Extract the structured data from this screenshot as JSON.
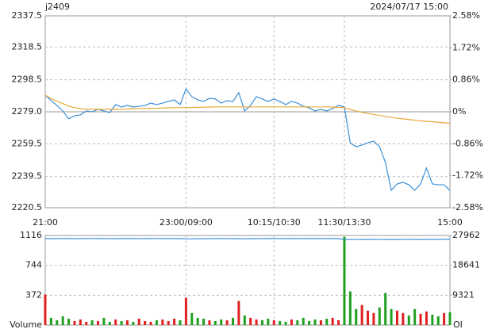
{
  "chart_data": [
    {
      "type": "line",
      "title": "j2409",
      "subtitle": "2024/07/17 15:00",
      "x": [
        0,
        5,
        10,
        15,
        20,
        25,
        30,
        35,
        40,
        45,
        50,
        55,
        60,
        65,
        70,
        75,
        80,
        85,
        90,
        95,
        100,
        105,
        110,
        115,
        120,
        125,
        130,
        135,
        140,
        145,
        150,
        155,
        160,
        165,
        170,
        175,
        180,
        185,
        190,
        195,
        200,
        205,
        210,
        215,
        220,
        225,
        230,
        235,
        240,
        245,
        250,
        255,
        260,
        265,
        270,
        275,
        280,
        285,
        290,
        295,
        300,
        305,
        310,
        315,
        320,
        325,
        330,
        335,
        340,
        345
      ],
      "series": [
        {
          "color": "#3a8fd8",
          "values": [
            2289.2,
            2285.8,
            2282.9,
            2279.5,
            2274.7,
            2276.6,
            2277.1,
            2279.5,
            2279.0,
            2280.5,
            2279.5,
            2278.5,
            2283.4,
            2281.9,
            2282.9,
            2281.9,
            2282.4,
            2282.9,
            2284.3,
            2283.4,
            2284.3,
            2285.3,
            2286.3,
            2283.4,
            2293.0,
            2288.2,
            2286.3,
            2285.3,
            2287.2,
            2286.8,
            2284.3,
            2285.8,
            2285.3,
            2290.6,
            2279.5,
            2282.9,
            2288.2,
            2286.8,
            2285.3,
            2286.8,
            2285.3,
            2283.4,
            2285.3,
            2284.3,
            2282.4,
            2281.4,
            2279.5,
            2280.5,
            2279.5,
            2281.0,
            2282.9,
            2281.9,
            2260.1,
            2257.7,
            2258.7,
            2260.1,
            2261.1,
            2257.7,
            2248.1,
            2231.1,
            2235.0,
            2236.0,
            2234.5,
            2231.1,
            2235.0,
            2244.7,
            2235.0,
            2234.5,
            2234.5,
            2231.1
          ]
        },
        {
          "color": "#e8a838",
          "values": [
            2289.2,
            2287.0,
            2285.5,
            2284.0,
            2282.5,
            2281.5,
            2281.0,
            2280.5,
            2280.5,
            2280.5,
            2280.5,
            2280.5,
            2280.5,
            2280.6,
            2280.7,
            2280.8,
            2280.9,
            2281.0,
            2281.1,
            2281.2,
            2281.3,
            2281.4,
            2281.5,
            2281.5,
            2281.5,
            2281.6,
            2281.7,
            2281.8,
            2281.9,
            2282.0,
            2282.0,
            2282.0,
            2282.0,
            2282.0,
            2282.0,
            2282.0,
            2282.0,
            2282.0,
            2282.0,
            2282.0,
            2282.0,
            2282.0,
            2282.0,
            2282.0,
            2282.0,
            2282.0,
            2282.0,
            2282.0,
            2282.0,
            2281.9,
            2281.7,
            2281.5,
            2280.5,
            2279.5,
            2278.7,
            2278.0,
            2277.4,
            2276.8,
            2276.2,
            2275.6,
            2275.1,
            2274.7,
            2274.3,
            2273.9,
            2273.5,
            2273.2,
            2272.9,
            2272.6,
            2272.3,
            2272.0
          ]
        }
      ],
      "xlim": [
        0,
        345
      ],
      "xticks": [
        {
          "value": 0,
          "label": "21:00"
        },
        {
          "value": 120,
          "label": "23:00/09:00"
        },
        {
          "value": 195,
          "label": "10:15/10:30"
        },
        {
          "value": 255,
          "label": "11:30/13:30"
        },
        {
          "value": 345,
          "label": "15:00"
        }
      ],
      "ylim": [
        2220.5,
        2337.5
      ],
      "yticks": [
        2220.5,
        2239.5,
        2259.5,
        {
          "value": 2279,
          "label": "2279.0"
        },
        2298.5,
        2318.5,
        2337.5
      ],
      "y2lim": [
        -2.58,
        2.58
      ],
      "y2ticks": [
        {
          "value": -2.58,
          "label": "-2.58%"
        },
        {
          "value": -1.72,
          "label": "-1.72%"
        },
        {
          "value": -0.86,
          "label": "-0.86%"
        },
        {
          "value": 0,
          "label": "0%"
        },
        {
          "value": 0.86,
          "label": "0.86%"
        },
        {
          "value": 1.72,
          "label": "1.72%"
        },
        {
          "value": 2.58,
          "label": "2.58%"
        }
      ],
      "up_color": "#e02020",
      "down_color": "#20a020",
      "grid": true
    },
    {
      "type": "bar",
      "y_label": "Volume",
      "y2_label": "OI",
      "x": [
        0,
        5,
        10,
        15,
        20,
        25,
        30,
        35,
        40,
        45,
        50,
        55,
        60,
        65,
        70,
        75,
        80,
        85,
        90,
        95,
        100,
        105,
        110,
        115,
        120,
        125,
        130,
        135,
        140,
        145,
        150,
        155,
        160,
        165,
        170,
        175,
        180,
        185,
        190,
        195,
        200,
        205,
        210,
        215,
        220,
        225,
        230,
        235,
        240,
        245,
        250,
        255,
        260,
        265,
        270,
        275,
        280,
        285,
        290,
        295,
        300,
        305,
        310,
        315,
        320,
        325,
        330,
        335,
        340,
        345
      ],
      "series": [
        {
          "type": "bar",
          "values": [
            380,
            90,
            60,
            110,
            80,
            50,
            70,
            40,
            60,
            50,
            90,
            40,
            70,
            50,
            60,
            40,
            80,
            50,
            40,
            60,
            70,
            50,
            80,
            60,
            340,
            150,
            90,
            80,
            60,
            50,
            70,
            60,
            90,
            300,
            120,
            90,
            70,
            60,
            80,
            60,
            50,
            40,
            70,
            60,
            90,
            50,
            70,
            60,
            80,
            90,
            60,
            1100,
            420,
            200,
            250,
            180,
            150,
            220,
            400,
            200,
            180,
            150,
            120,
            200,
            140,
            170,
            130,
            110,
            150,
            160
          ],
          "colors": [
            "#e02020",
            "#20a020",
            "#20a020",
            "#20a020",
            "#20a020",
            "#e02020",
            "#e02020",
            "#e02020",
            "#20a020",
            "#e02020",
            "#20a020",
            "#20a020",
            "#e02020",
            "#20a020",
            "#e02020",
            "#20a020",
            "#e02020",
            "#e02020",
            "#e02020",
            "#20a020",
            "#e02020",
            "#e02020",
            "#e02020",
            "#20a020",
            "#e02020",
            "#20a020",
            "#20a020",
            "#20a020",
            "#e02020",
            "#20a020",
            "#20a020",
            "#e02020",
            "#20a020",
            "#e02020",
            "#20a020",
            "#e02020",
            "#e02020",
            "#20a020",
            "#20a020",
            "#e02020",
            "#20a020",
            "#20a020",
            "#e02020",
            "#20a020",
            "#20a020",
            "#20a020",
            "#20a020",
            "#e02020",
            "#20a020",
            "#e02020",
            "#e02020",
            "#20a020",
            "#20a020",
            "#20a020",
            "#e02020",
            "#e02020",
            "#e02020",
            "#20a020",
            "#20a020",
            "#20a020",
            "#e02020",
            "#e02020",
            "#20a020",
            "#20a020",
            "#e02020",
            "#e02020",
            "#20a020",
            "#20a020",
            "#e02020",
            "#20a020"
          ]
        },
        {
          "type": "line",
          "axis": "y2",
          "color": "#3a8fd8",
          "values": [
            27000,
            26980,
            26990,
            27010,
            27000,
            26970,
            26990,
            27000,
            27020,
            27010,
            27000,
            26990,
            26980,
            27000,
            27010,
            27000,
            26990,
            27000,
            27010,
            27020,
            27000,
            26990,
            27000,
            27010,
            26900,
            26920,
            26950,
            26960,
            26980,
            26990,
            27000,
            26990,
            27000,
            26950,
            26960,
            26970,
            26980,
            26990,
            27000,
            27000,
            26990,
            27000,
            27010,
            27000,
            26990,
            27000,
            27000,
            26990,
            27000,
            27010,
            27000,
            26700,
            26720,
            26740,
            26730,
            26750,
            26760,
            26740,
            26700,
            26720,
            26730,
            26740,
            26750,
            26740,
            26730,
            26760,
            26750,
            26760,
            26770,
            26780
          ]
        }
      ],
      "xlim": [
        0,
        345
      ],
      "xticks": [
        0,
        120,
        195,
        255,
        345
      ],
      "ylim": [
        0,
        1116
      ],
      "yticks": [
        372,
        744,
        1116
      ],
      "y2lim": [
        0,
        27962
      ],
      "y2ticks": [
        9321,
        18641,
        27962
      ],
      "grid": true
    }
  ]
}
